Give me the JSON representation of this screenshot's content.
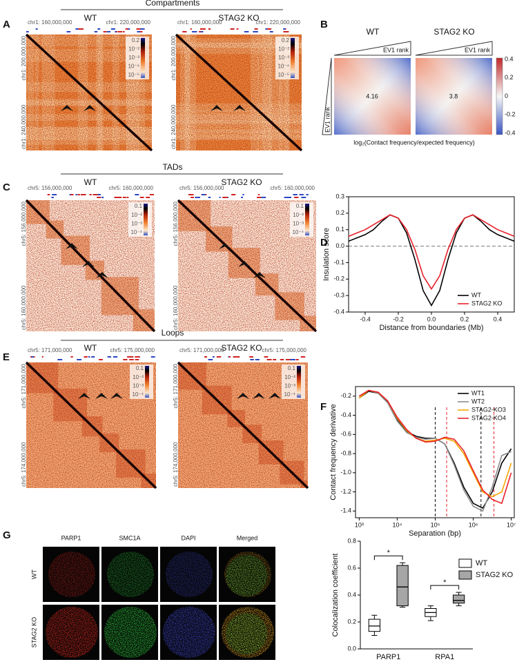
{
  "figure": {
    "A": {
      "letter": "A",
      "title": "Compartments",
      "wt": "WT",
      "ko": "STAG2 KO",
      "x_start": "chr1: 160,000,000",
      "x_end": "chr1: 220,000,000",
      "y_start": "chr1: 200,000,000",
      "y_end": "chr1: 240,000,000",
      "colorbar": [
        "0.2",
        "10⁻²",
        "10⁻³",
        "10⁻⁴",
        "10⁻⁵"
      ]
    },
    "B": {
      "letter": "B",
      "wt": "WT",
      "ko": "STAG2 KO",
      "rank_label": "EV1 rank",
      "wt_strength": "4.16",
      "ko_strength": "3.8",
      "colorbar": [
        "0.4",
        "0.2",
        "0",
        "-0.2",
        "-0.4"
      ],
      "caption": "log₂(Contact frequency/expected frequency)"
    },
    "C": {
      "letter": "C",
      "title": "TADs",
      "wt": "WT",
      "ko": "STAG2 KO",
      "x_start": "chr5: 156,000,000",
      "x_end": "chr5: 160,000,000",
      "y_start": "chr5: 156,000,000",
      "y_end": "chr5: 160,000,000",
      "colorbar": [
        "0.1",
        "10⁻²",
        "10⁻³",
        "10⁻⁴"
      ]
    },
    "D": {
      "letter": "D"
    },
    "E": {
      "letter": "E",
      "title": "Loops",
      "wt": "WT",
      "ko": "STAG2 KO",
      "x_start": "chr5: 171,000,000",
      "x_end": "chr5: 175,000,000",
      "y_start": "chr5: 171,000,000",
      "y_end": "chr5: 174,000,000",
      "colorbar": [
        "0.1",
        "10⁻²",
        "10⁻³",
        "10⁻⁴"
      ]
    },
    "F": {
      "letter": "F"
    },
    "G": {
      "letter": "G",
      "channels": [
        "PARP1",
        "SMC1A",
        "DAPI",
        "Merged"
      ],
      "rows": [
        "WT",
        "STAG2 KO"
      ]
    }
  },
  "chart_data": [
    {
      "type": "line",
      "xlabel": "Distance from boundaries (Mb)",
      "ylabel": "Insulation score",
      "x": [
        -0.5,
        -0.45,
        -0.4,
        -0.35,
        -0.3,
        -0.25,
        -0.2,
        -0.15,
        -0.1,
        -0.05,
        0,
        0.05,
        0.1,
        0.15,
        0.2,
        0.25,
        0.3,
        0.35,
        0.4,
        0.45,
        0.5
      ],
      "series": [
        {
          "name": "WT",
          "color": "#000000",
          "values": [
            0.03,
            0.05,
            0.07,
            0.1,
            0.15,
            0.19,
            0.17,
            0.08,
            -0.08,
            -0.27,
            -0.36,
            -0.27,
            -0.08,
            0.08,
            0.17,
            0.19,
            0.15,
            0.1,
            0.07,
            0.05,
            0.03
          ]
        },
        {
          "name": "STAG2 KO",
          "color": "#e8202a",
          "values": [
            0.06,
            0.08,
            0.1,
            0.13,
            0.16,
            0.19,
            0.17,
            0.1,
            -0.02,
            -0.18,
            -0.26,
            -0.18,
            -0.02,
            0.1,
            0.17,
            0.19,
            0.16,
            0.13,
            0.1,
            0.08,
            0.06
          ]
        }
      ],
      "xlim": [
        -0.5,
        0.5
      ],
      "xticks": [
        -0.4,
        -0.2,
        {
          "value": 0,
          "label": "0.0"
        },
        0.2,
        0.4
      ],
      "ylim": [
        -0.4,
        0.3
      ],
      "yticks": [
        -0.4,
        -0.3,
        -0.2,
        -0.1,
        {
          "value": 0,
          "label": "0.0"
        },
        0.1,
        0.2,
        0.3
      ],
      "hline": 0,
      "frame": true,
      "legend": "lower right"
    },
    {
      "type": "line",
      "xlabel": "Separation (bp)",
      "ylabel": "Contact frequency derivative",
      "xscale": "log",
      "x": [
        1000,
        1778,
        3162,
        5623,
        10000,
        17783,
        31623,
        56234,
        100000,
        177828,
        316228,
        562341,
        1000000,
        1778279,
        3162278,
        5623413,
        10000000
      ],
      "series": [
        {
          "name": "WT1",
          "color": "#000000",
          "values": [
            -0.22,
            -0.15,
            -0.17,
            -0.26,
            -0.45,
            -0.57,
            -0.62,
            -0.64,
            -0.64,
            -0.7,
            -0.9,
            -1.15,
            -1.32,
            -1.37,
            -1.2,
            -0.9,
            -0.75
          ]
        },
        {
          "name": "WT2",
          "color": "#8c8c8c",
          "values": [
            -0.2,
            -0.14,
            -0.17,
            -0.27,
            -0.46,
            -0.58,
            -0.63,
            -0.65,
            -0.64,
            -0.7,
            -0.92,
            -1.18,
            -1.35,
            -1.4,
            -1.15,
            -0.82,
            -0.78
          ]
        },
        {
          "name": "STAG2-KO3",
          "color": "#f5a300",
          "values": [
            -0.22,
            -0.14,
            -0.16,
            -0.25,
            -0.43,
            -0.56,
            -0.64,
            -0.67,
            -0.66,
            -0.64,
            -0.67,
            -0.8,
            -1.0,
            -1.2,
            -1.25,
            -1.2,
            -0.9
          ]
        },
        {
          "name": "STAG2-KO4",
          "color": "#e8202a",
          "values": [
            -0.2,
            -0.14,
            -0.16,
            -0.25,
            -0.42,
            -0.55,
            -0.64,
            -0.68,
            -0.67,
            -0.63,
            -0.65,
            -0.77,
            -0.98,
            -1.18,
            -1.28,
            -1.32,
            -1.0
          ]
        }
      ],
      "xlim": [
        800,
        12000000
      ],
      "xticks": [
        {
          "value": 1000,
          "label": "10³"
        },
        {
          "value": 10000,
          "label": "10⁴"
        },
        {
          "value": 100000,
          "label": "10⁵"
        },
        {
          "value": 1000000,
          "label": "10⁶"
        },
        {
          "value": 10000000,
          "label": "10⁷"
        }
      ],
      "ylim": [
        -1.47,
        -0.1
      ],
      "yticks": [
        -0.2,
        -0.4,
        -0.6,
        -0.8,
        {
          "value": -1,
          "label": "-1.0"
        },
        -1.2,
        -1.4
      ],
      "vlines": [
        {
          "x": 100000,
          "color": "#000000"
        },
        {
          "x": 200000,
          "color": "#e8202a"
        },
        {
          "x": 1600000,
          "color": "#000000"
        },
        {
          "x": 3500000,
          "color": "#e8202a"
        }
      ],
      "frame": true,
      "legend": "upper right"
    },
    {
      "type": "box",
      "ylabel": "Colocalization coefficient",
      "categories": [
        "PARP1",
        "RPA1"
      ],
      "series": [
        {
          "name": "WT",
          "color": "#ffffff",
          "values": [
            [
              0.1,
              0.13,
              0.17,
              0.22,
              0.25
            ],
            [
              0.21,
              0.24,
              0.27,
              0.3,
              0.32
            ]
          ]
        },
        {
          "name": "STAG2 KO",
          "color": "#a6a6a6",
          "values": [
            [
              0.31,
              0.32,
              0.46,
              0.62,
              0.64
            ],
            [
              0.32,
              0.34,
              0.36,
              0.4,
              0.42
            ]
          ]
        }
      ],
      "annotations": [
        "*",
        "*"
      ],
      "ylim": [
        0,
        0.8
      ],
      "yticks": [
        {
          "value": 0,
          "label": "0.0"
        },
        0.2,
        0.4,
        0.6,
        0.8
      ],
      "legend": "upper right"
    }
  ]
}
